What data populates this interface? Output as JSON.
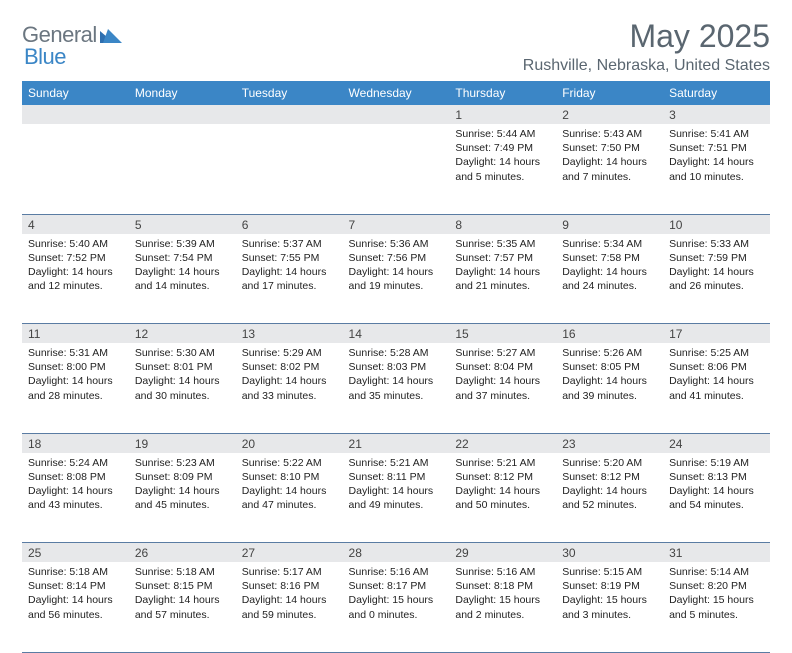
{
  "logo": {
    "word1": "General",
    "word2": "Blue"
  },
  "title": "May 2025",
  "location": "Rushville, Nebraska, United States",
  "colors": {
    "header_bg": "#3b86c6",
    "header_text": "#ffffff",
    "daynum_bg": "#e7e8ea",
    "body_text": "#222222",
    "title_text": "#5a6670",
    "rule": "#5a7ca3"
  },
  "weekdays": [
    "Sunday",
    "Monday",
    "Tuesday",
    "Wednesday",
    "Thursday",
    "Friday",
    "Saturday"
  ],
  "weeks": [
    [
      null,
      null,
      null,
      null,
      {
        "n": "1",
        "rise": "Sunrise: 5:44 AM",
        "set": "Sunset: 7:49 PM",
        "day": "Daylight: 14 hours and 5 minutes."
      },
      {
        "n": "2",
        "rise": "Sunrise: 5:43 AM",
        "set": "Sunset: 7:50 PM",
        "day": "Daylight: 14 hours and 7 minutes."
      },
      {
        "n": "3",
        "rise": "Sunrise: 5:41 AM",
        "set": "Sunset: 7:51 PM",
        "day": "Daylight: 14 hours and 10 minutes."
      }
    ],
    [
      {
        "n": "4",
        "rise": "Sunrise: 5:40 AM",
        "set": "Sunset: 7:52 PM",
        "day": "Daylight: 14 hours and 12 minutes."
      },
      {
        "n": "5",
        "rise": "Sunrise: 5:39 AM",
        "set": "Sunset: 7:54 PM",
        "day": "Daylight: 14 hours and 14 minutes."
      },
      {
        "n": "6",
        "rise": "Sunrise: 5:37 AM",
        "set": "Sunset: 7:55 PM",
        "day": "Daylight: 14 hours and 17 minutes."
      },
      {
        "n": "7",
        "rise": "Sunrise: 5:36 AM",
        "set": "Sunset: 7:56 PM",
        "day": "Daylight: 14 hours and 19 minutes."
      },
      {
        "n": "8",
        "rise": "Sunrise: 5:35 AM",
        "set": "Sunset: 7:57 PM",
        "day": "Daylight: 14 hours and 21 minutes."
      },
      {
        "n": "9",
        "rise": "Sunrise: 5:34 AM",
        "set": "Sunset: 7:58 PM",
        "day": "Daylight: 14 hours and 24 minutes."
      },
      {
        "n": "10",
        "rise": "Sunrise: 5:33 AM",
        "set": "Sunset: 7:59 PM",
        "day": "Daylight: 14 hours and 26 minutes."
      }
    ],
    [
      {
        "n": "11",
        "rise": "Sunrise: 5:31 AM",
        "set": "Sunset: 8:00 PM",
        "day": "Daylight: 14 hours and 28 minutes."
      },
      {
        "n": "12",
        "rise": "Sunrise: 5:30 AM",
        "set": "Sunset: 8:01 PM",
        "day": "Daylight: 14 hours and 30 minutes."
      },
      {
        "n": "13",
        "rise": "Sunrise: 5:29 AM",
        "set": "Sunset: 8:02 PM",
        "day": "Daylight: 14 hours and 33 minutes."
      },
      {
        "n": "14",
        "rise": "Sunrise: 5:28 AM",
        "set": "Sunset: 8:03 PM",
        "day": "Daylight: 14 hours and 35 minutes."
      },
      {
        "n": "15",
        "rise": "Sunrise: 5:27 AM",
        "set": "Sunset: 8:04 PM",
        "day": "Daylight: 14 hours and 37 minutes."
      },
      {
        "n": "16",
        "rise": "Sunrise: 5:26 AM",
        "set": "Sunset: 8:05 PM",
        "day": "Daylight: 14 hours and 39 minutes."
      },
      {
        "n": "17",
        "rise": "Sunrise: 5:25 AM",
        "set": "Sunset: 8:06 PM",
        "day": "Daylight: 14 hours and 41 minutes."
      }
    ],
    [
      {
        "n": "18",
        "rise": "Sunrise: 5:24 AM",
        "set": "Sunset: 8:08 PM",
        "day": "Daylight: 14 hours and 43 minutes."
      },
      {
        "n": "19",
        "rise": "Sunrise: 5:23 AM",
        "set": "Sunset: 8:09 PM",
        "day": "Daylight: 14 hours and 45 minutes."
      },
      {
        "n": "20",
        "rise": "Sunrise: 5:22 AM",
        "set": "Sunset: 8:10 PM",
        "day": "Daylight: 14 hours and 47 minutes."
      },
      {
        "n": "21",
        "rise": "Sunrise: 5:21 AM",
        "set": "Sunset: 8:11 PM",
        "day": "Daylight: 14 hours and 49 minutes."
      },
      {
        "n": "22",
        "rise": "Sunrise: 5:21 AM",
        "set": "Sunset: 8:12 PM",
        "day": "Daylight: 14 hours and 50 minutes."
      },
      {
        "n": "23",
        "rise": "Sunrise: 5:20 AM",
        "set": "Sunset: 8:12 PM",
        "day": "Daylight: 14 hours and 52 minutes."
      },
      {
        "n": "24",
        "rise": "Sunrise: 5:19 AM",
        "set": "Sunset: 8:13 PM",
        "day": "Daylight: 14 hours and 54 minutes."
      }
    ],
    [
      {
        "n": "25",
        "rise": "Sunrise: 5:18 AM",
        "set": "Sunset: 8:14 PM",
        "day": "Daylight: 14 hours and 56 minutes."
      },
      {
        "n": "26",
        "rise": "Sunrise: 5:18 AM",
        "set": "Sunset: 8:15 PM",
        "day": "Daylight: 14 hours and 57 minutes."
      },
      {
        "n": "27",
        "rise": "Sunrise: 5:17 AM",
        "set": "Sunset: 8:16 PM",
        "day": "Daylight: 14 hours and 59 minutes."
      },
      {
        "n": "28",
        "rise": "Sunrise: 5:16 AM",
        "set": "Sunset: 8:17 PM",
        "day": "Daylight: 15 hours and 0 minutes."
      },
      {
        "n": "29",
        "rise": "Sunrise: 5:16 AM",
        "set": "Sunset: 8:18 PM",
        "day": "Daylight: 15 hours and 2 minutes."
      },
      {
        "n": "30",
        "rise": "Sunrise: 5:15 AM",
        "set": "Sunset: 8:19 PM",
        "day": "Daylight: 15 hours and 3 minutes."
      },
      {
        "n": "31",
        "rise": "Sunrise: 5:14 AM",
        "set": "Sunset: 8:20 PM",
        "day": "Daylight: 15 hours and 5 minutes."
      }
    ]
  ]
}
